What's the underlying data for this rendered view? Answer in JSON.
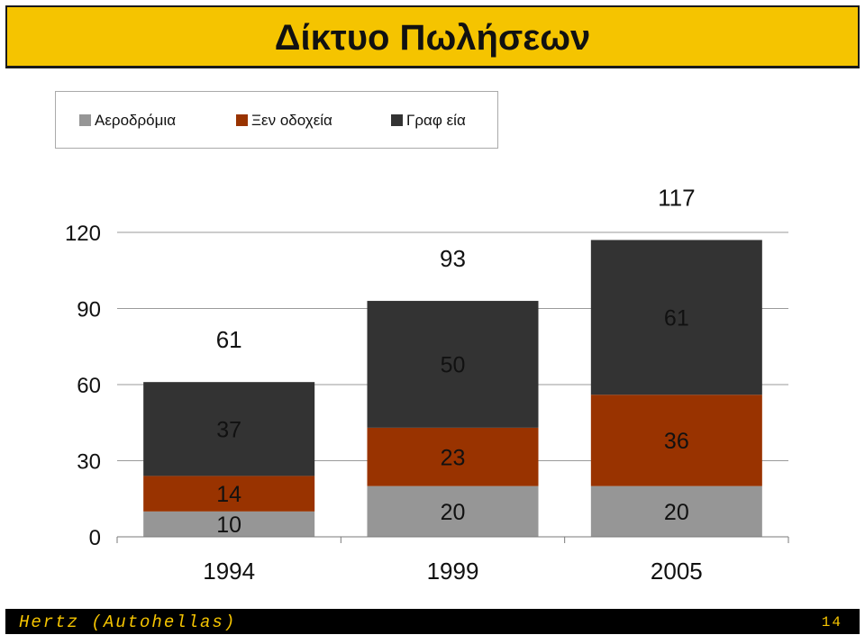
{
  "slide": {
    "title": "Δίκτυο Πωλήσεων",
    "footer_left": "Hertz (Autohellas)",
    "page_number": "14"
  },
  "colors": {
    "title_bg": "#f5c400",
    "footer_bg": "#000000",
    "footer_text": "#f5c400"
  },
  "chart_data": {
    "type": "bar",
    "stacked": true,
    "categories": [
      "1994",
      "1999",
      "2005"
    ],
    "series": [
      {
        "name": "Αεροδρόμια",
        "color": "#969696",
        "values": [
          10,
          20,
          20
        ]
      },
      {
        "name": "Ξεν οδοχεία",
        "color": "#993300",
        "values": [
          14,
          23,
          36
        ]
      },
      {
        "name": "Γραφ εία",
        "color": "#333333",
        "values": [
          37,
          50,
          61
        ]
      }
    ],
    "totals": [
      61,
      93,
      117
    ],
    "ylim": [
      0,
      120
    ],
    "yticks": [
      "0",
      "30",
      "60",
      "90",
      "120"
    ],
    "grid": true,
    "legend": "top-left"
  }
}
